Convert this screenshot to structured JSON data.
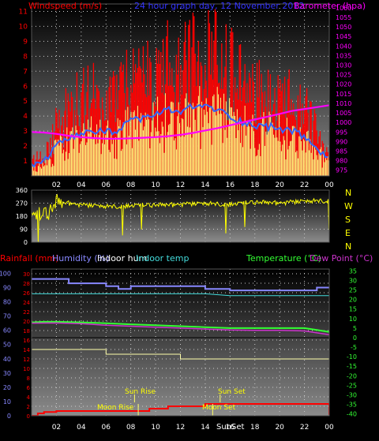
{
  "header": {
    "wind_label": "Windspeed (m/s)",
    "graph_title": "24 hour graph day, 12 November 2012",
    "baro_label": "Barometer (hpa)"
  },
  "lower_header": {
    "rain_label": "Rainfall (mm)",
    "humidity_label": "Humidity (%)",
    "indoor_hum_label": "Indoor hum",
    "indoor_temp_label": "Indoor temp",
    "temp_label": "Temperature (°C)",
    "dew_label": "Dew Point (°C)"
  },
  "annotations": {
    "sun_rise": "Sun Rise",
    "sun_set": "Sun Set",
    "moon_rise": "Moon Rise",
    "moon_set": "Moon Set",
    "bottom_sun_set": "SunSet"
  },
  "direction_labels": [
    "N",
    "W",
    "S",
    "E",
    "N"
  ],
  "colors": {
    "wind": "#ff0000",
    "gust": "#ffff80",
    "avg_wind": "#3366ff",
    "barometer": "#ff00ff",
    "direction": "#ffff00",
    "rain": "#ff0000",
    "humidity": "#8888ff",
    "indoor_hum": "#ffffaa",
    "indoor_temp": "#44dddd",
    "temperature": "#33ff33",
    "dew_point": "#cc33cc",
    "grid_dot": "#cccccc"
  },
  "chart_data": [
    {
      "type": "line",
      "name": "wind_barometer",
      "title": "24 hour graph day, 12 November 2012",
      "x_ticks": [
        "02",
        "04",
        "06",
        "08",
        "10",
        "12",
        "14",
        "16",
        "18",
        "20",
        "22",
        "00"
      ],
      "xlim_hours": [
        0,
        24
      ],
      "y_left_label": "Windspeed (m/s)",
      "y_left_ticks": [
        1,
        2,
        3,
        4,
        5,
        6,
        7,
        8,
        9,
        10,
        11
      ],
      "ylim_left": [
        0,
        11.5
      ],
      "y_right_label": "Barometer (hpa)",
      "y_right_ticks": [
        975,
        980,
        985,
        990,
        995,
        1000,
        1005,
        1010,
        1015,
        1020,
        1025,
        1030,
        1035,
        1040,
        1045,
        1050,
        1055,
        1060
      ],
      "ylim_right": [
        972,
        1062
      ],
      "series": [
        {
          "name": "Windspeed",
          "x": [
            0,
            1,
            2,
            3,
            4,
            5,
            6,
            7,
            8,
            9,
            10,
            11,
            12,
            13,
            14,
            15,
            16,
            17,
            18,
            19,
            20,
            21,
            22,
            23,
            24
          ],
          "values": [
            1.0,
            1.5,
            3.5,
            4.5,
            5.2,
            5.5,
            5.0,
            5.5,
            6.5,
            6.5,
            7.0,
            7.5,
            7.0,
            8.0,
            8.5,
            8.0,
            7.2,
            6.5,
            6.0,
            5.8,
            5.5,
            5.0,
            4.5,
            3.0,
            2.0
          ]
        },
        {
          "name": "Average",
          "x": [
            0,
            1,
            2,
            3,
            4,
            5,
            6,
            7,
            8,
            9,
            10,
            11,
            12,
            13,
            14,
            15,
            16,
            17,
            18,
            19,
            20,
            21,
            22,
            23,
            24
          ],
          "values": [
            0.6,
            1.0,
            2.0,
            2.4,
            2.8,
            3.0,
            2.9,
            3.1,
            3.6,
            3.9,
            4.1,
            4.4,
            4.3,
            4.6,
            4.7,
            4.4,
            4.0,
            3.6,
            3.4,
            3.3,
            3.2,
            3.0,
            2.6,
            1.8,
            1.2
          ]
        },
        {
          "name": "Barometer",
          "x": [
            0,
            1,
            2,
            3,
            4,
            5,
            6,
            7,
            8,
            9,
            10,
            11,
            12,
            13,
            14,
            15,
            16,
            17,
            18,
            19,
            20,
            21,
            22,
            23,
            24
          ],
          "values": [
            995,
            994.7,
            994,
            993,
            992.3,
            991.8,
            991.5,
            991.5,
            991.7,
            992,
            992.3,
            992.8,
            993.5,
            994.5,
            995.8,
            997,
            998.5,
            1000,
            1001.5,
            1003,
            1004.5,
            1006,
            1007,
            1008,
            1009
          ]
        }
      ]
    },
    {
      "type": "line",
      "name": "wind_direction",
      "xlim_hours": [
        0,
        24
      ],
      "y_ticks": [
        0,
        90,
        180,
        270,
        360
      ],
      "ylim": [
        0,
        360
      ],
      "series": [
        {
          "name": "Direction",
          "x": [
            0,
            1,
            1.5,
            2,
            3,
            4,
            6,
            8,
            10,
            12,
            14,
            16,
            18,
            20,
            22,
            23,
            24
          ],
          "values": [
            170,
            190,
            210,
            270,
            270,
            255,
            245,
            255,
            255,
            260,
            265,
            265,
            275,
            270,
            280,
            285,
            290
          ]
        }
      ]
    },
    {
      "type": "line",
      "name": "temp_humidity_rain",
      "x_ticks": [
        "02",
        "04",
        "06",
        "08",
        "10",
        "12",
        "14",
        "16",
        "18",
        "20",
        "22",
        "00"
      ],
      "xlim_hours": [
        0,
        24
      ],
      "y_left1_label": "Rainfall (mm)",
      "y_left1_ticks": [
        0,
        2,
        4,
        6,
        8,
        10,
        12,
        14,
        16,
        18,
        20,
        22,
        24,
        26,
        28,
        30
      ],
      "ylim_rain": [
        0,
        31
      ],
      "y_left2_label": "Humidity (%)",
      "y_left2_ticks": [
        0,
        10,
        20,
        30,
        40,
        50,
        60,
        70,
        80,
        90,
        100
      ],
      "ylim_humidity": [
        0,
        103
      ],
      "y_right_label": "Temperature (°C)",
      "y_right_ticks": [
        35,
        30,
        25,
        20,
        15,
        10,
        5,
        0,
        -5,
        -10,
        -15,
        -20,
        -25,
        -30,
        -35,
        -40
      ],
      "ylim_temp": [
        -41,
        36
      ],
      "series": [
        {
          "name": "Humidity",
          "x": [
            0,
            2,
            3,
            4,
            6,
            7,
            8,
            10,
            12,
            14,
            16,
            18,
            20,
            22,
            23,
            24
          ],
          "values": [
            96,
            96,
            93,
            93,
            91,
            89,
            91,
            91,
            91,
            89,
            88,
            88,
            88,
            88,
            90,
            90
          ]
        },
        {
          "name": "Indoor temp",
          "x": [
            0,
            4,
            8,
            12,
            14,
            16,
            18,
            20,
            22,
            24
          ],
          "values": [
            23,
            23,
            23,
            23,
            23,
            22,
            22,
            22,
            22,
            22
          ]
        },
        {
          "name": "Temperature",
          "x": [
            0,
            1,
            2,
            4,
            6,
            8,
            10,
            12,
            14,
            16,
            18,
            20,
            22,
            23,
            24
          ],
          "values": [
            8,
            8.3,
            8.3,
            8,
            7.5,
            7,
            6.5,
            6,
            5.5,
            5,
            5,
            5,
            5,
            4,
            3
          ]
        },
        {
          "name": "Dew Point",
          "x": [
            0,
            2,
            4,
            6,
            8,
            10,
            12,
            14,
            16,
            18,
            20,
            22,
            23,
            24
          ],
          "values": [
            7.6,
            7.7,
            7.3,
            6.5,
            6,
            5.5,
            5,
            4.5,
            4,
            3.8,
            3.8,
            3.5,
            2.5,
            1.5
          ]
        },
        {
          "name": "Indoor hum",
          "x": [
            0,
            3,
            4,
            6,
            8,
            10,
            12,
            14,
            16,
            18,
            20,
            22,
            24
          ],
          "values": [
            14,
            14,
            14,
            13,
            13,
            13,
            12,
            12,
            12,
            12,
            12,
            12,
            12
          ]
        },
        {
          "name": "Rainfall",
          "x": [
            0,
            0.5,
            1,
            2,
            4,
            6,
            8,
            9,
            9.5,
            10,
            11,
            14,
            16,
            18,
            20,
            22,
            23,
            23.5,
            24
          ],
          "values": [
            0,
            0.5,
            0.8,
            1,
            1,
            1,
            1,
            1,
            1.5,
            1.5,
            2,
            2.5,
            2.5,
            2.5,
            2.5,
            2.5,
            2.5,
            2.5,
            0.2
          ]
        }
      ]
    }
  ]
}
